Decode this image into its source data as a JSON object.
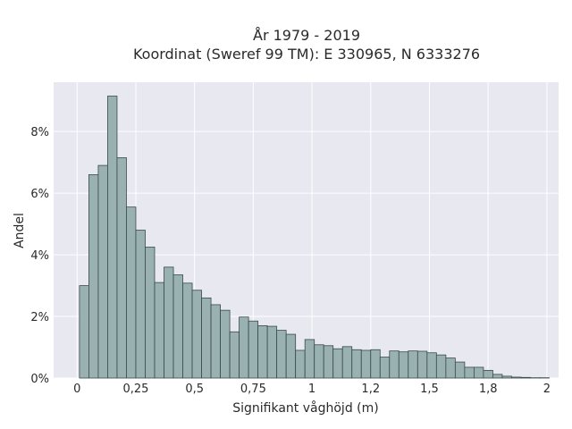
{
  "chart_data": {
    "type": "bar",
    "title": "År 1979 - 2019",
    "subtitle": "Koordinat (Sweref 99 TM): E 330965, N 6333276",
    "xlabel": "Signifikant våghöjd (m)",
    "ylabel": "Andel",
    "xlim": [
      -0.1,
      2.05
    ],
    "ylim": [
      0,
      0.096
    ],
    "xticks": [
      0,
      0.25,
      0.5,
      0.75,
      1,
      1.25,
      1.5,
      1.75,
      2
    ],
    "xtick_labels": [
      "0",
      "0,25",
      "0,5",
      "0,75",
      "1",
      "1,2",
      "1,5",
      "1,8",
      "2"
    ],
    "yticks": [
      0,
      0.02,
      0.04,
      0.06,
      0.08
    ],
    "ytick_labels": [
      "0%",
      "2%",
      "4%",
      "6%",
      "8%"
    ],
    "grid": true,
    "bin_start": 0.01,
    "bin_width": 0.04,
    "values": [
      0.03,
      0.066,
      0.069,
      0.0915,
      0.0715,
      0.0555,
      0.048,
      0.0425,
      0.031,
      0.036,
      0.0335,
      0.0308,
      0.0285,
      0.026,
      0.0238,
      0.022,
      0.015,
      0.0198,
      0.0185,
      0.017,
      0.0168,
      0.0155,
      0.0142,
      0.009,
      0.0125,
      0.0108,
      0.0105,
      0.0095,
      0.0102,
      0.0092,
      0.009,
      0.0092,
      0.0068,
      0.0088,
      0.0085,
      0.0088,
      0.0087,
      0.0082,
      0.0075,
      0.0065,
      0.0052,
      0.0035,
      0.0035,
      0.0025,
      0.0012,
      0.0006,
      0.0003,
      0.0002,
      0.0001,
      0.0001
    ]
  }
}
